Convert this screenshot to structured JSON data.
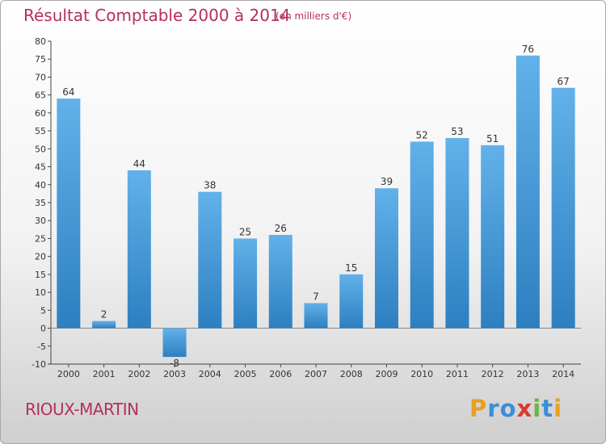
{
  "title": "Résultat Comptable 2000 à 2014",
  "subtitle": "(en milliers d'€)",
  "commune": "RIOUX-MARTIN",
  "logo": {
    "letters": [
      "P",
      "r",
      "o",
      "x",
      "i",
      "t",
      "i"
    ],
    "colors": [
      "#e8a020",
      "#3a8fd6",
      "#3a8fd6",
      "#d93a2a",
      "#6db33f",
      "#3a8fd6",
      "#e8a020"
    ]
  },
  "colors": {
    "bar": "#3f95d6",
    "title": "#b5305a"
  },
  "chart_data": {
    "type": "bar",
    "title": "Résultat Comptable 2000 à 2014",
    "subtitle": "(en milliers d'€)",
    "categories": [
      "2000",
      "2001",
      "2002",
      "2003",
      "2004",
      "2005",
      "2006",
      "2007",
      "2008",
      "2009",
      "2010",
      "2011",
      "2012",
      "2013",
      "2014"
    ],
    "values": [
      64,
      2,
      44,
      -8,
      38,
      25,
      26,
      7,
      15,
      39,
      52,
      53,
      51,
      76,
      67
    ],
    "value_labels": [
      "64",
      "2",
      "44",
      "-8",
      "38",
      "25",
      "26",
      "7",
      "15",
      "39",
      "52",
      "53",
      "51",
      "76",
      "67"
    ],
    "ylim": [
      -10,
      80
    ],
    "yticks": [
      -10,
      -5,
      0,
      5,
      10,
      15,
      20,
      25,
      30,
      35,
      40,
      45,
      50,
      55,
      60,
      65,
      70,
      75,
      80
    ],
    "grid": false,
    "legend": "none"
  }
}
